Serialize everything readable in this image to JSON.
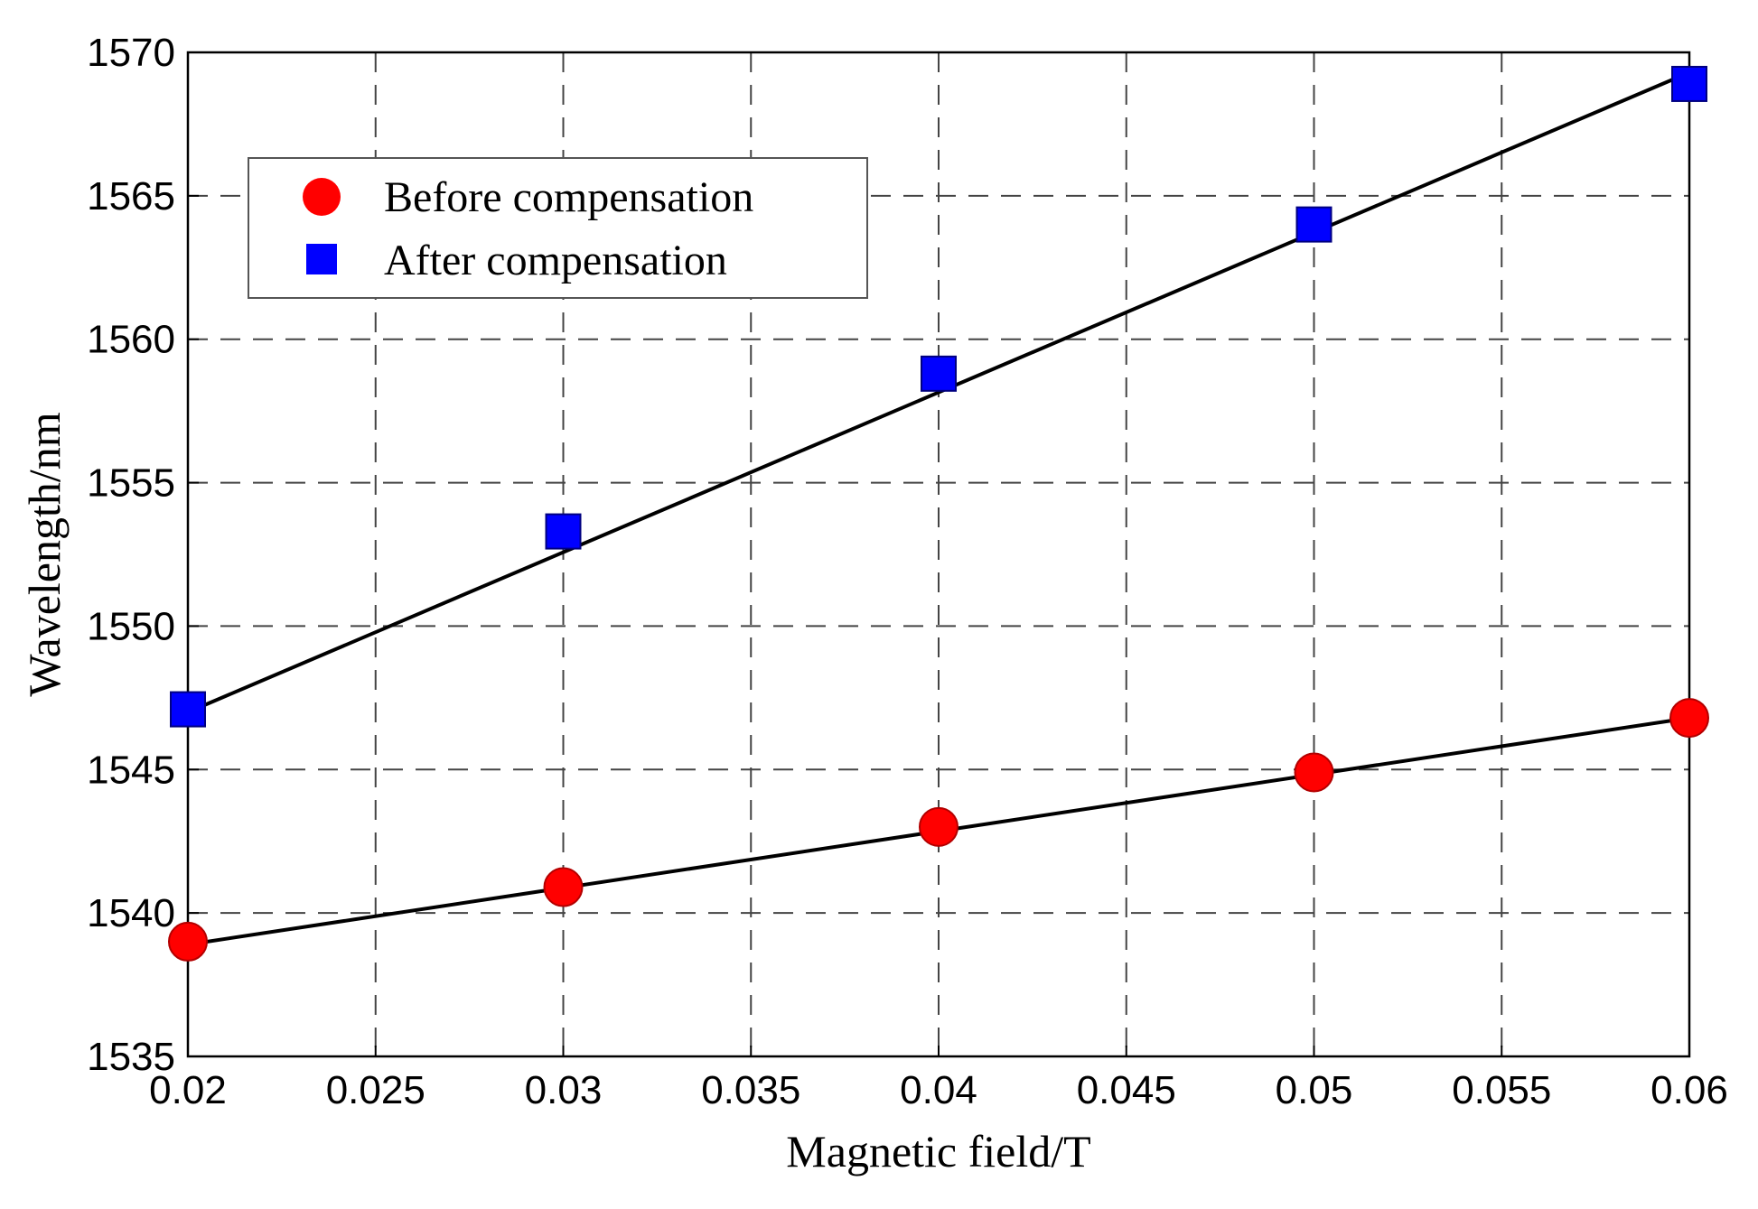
{
  "chart_data": {
    "type": "scatter",
    "title": "",
    "xlabel": "Magnetic field/T",
    "ylabel": "Wavelength/nm",
    "xlim": [
      0.02,
      0.06
    ],
    "ylim": [
      1535,
      1570
    ],
    "x_ticks": [
      0.02,
      0.025,
      0.03,
      0.035,
      0.04,
      0.045,
      0.05,
      0.055,
      0.06
    ],
    "x_tick_labels": [
      "0.02",
      "0.025",
      "0.03",
      "0.035",
      "0.04",
      "0.045",
      "0.05",
      "0.055",
      "0.06"
    ],
    "y_ticks": [
      1535,
      1540,
      1545,
      1550,
      1555,
      1560,
      1565,
      1570
    ],
    "y_tick_labels": [
      "1535",
      "1540",
      "1545",
      "1550",
      "1555",
      "1560",
      "1565",
      "1570"
    ],
    "grid": true,
    "legend_position": "top-left",
    "series": [
      {
        "name": "Before compensation",
        "marker": "circle",
        "color": "#ff0000",
        "x": [
          0.02,
          0.03,
          0.04,
          0.05,
          0.06
        ],
        "y": [
          1539.0,
          1540.9,
          1543.0,
          1544.9,
          1546.8
        ],
        "fit": [
          1538.9,
          1546.8
        ]
      },
      {
        "name": "After compensation",
        "marker": "square",
        "color": "#0000ff",
        "x": [
          0.02,
          0.03,
          0.04,
          0.05,
          0.06
        ],
        "y": [
          1547.1,
          1553.3,
          1558.8,
          1564.0,
          1568.9
        ],
        "fit": [
          1547.0,
          1569.3
        ]
      }
    ]
  }
}
